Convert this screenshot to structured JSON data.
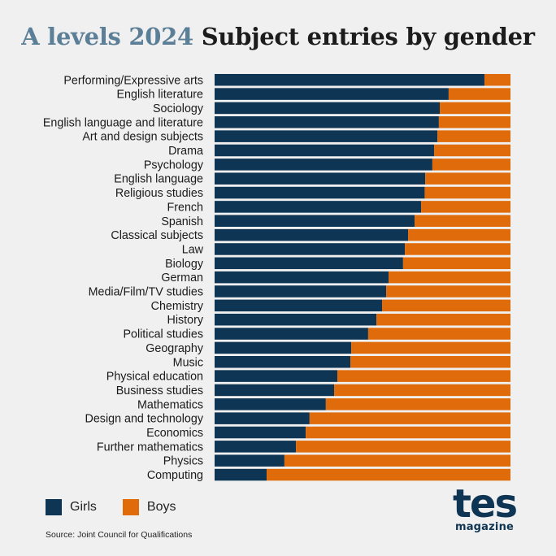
{
  "header": {
    "title_part1": "A levels 2024",
    "title_part2": "Subject entries by gender"
  },
  "colors": {
    "girls": "#0f3554",
    "boys": "#e06b0b"
  },
  "legend": {
    "girls": "Girls",
    "boys": "Boys"
  },
  "footer": {
    "source": "Source: Joint Council for Qualifications",
    "logo_main": "tes",
    "logo_sub": "magazine"
  },
  "chart_data": {
    "type": "bar",
    "orientation": "horizontal",
    "stacked": true,
    "normalized_100_percent": true,
    "title": "A levels 2024 Subject entries by gender",
    "categories": [
      "Performing/Expressive arts",
      "English literature",
      "Sociology",
      "English language and literature",
      "Art and design subjects",
      "Drama",
      "Psychology",
      "English language",
      "Religious studies",
      "French",
      "Spanish",
      "Classical subjects",
      "Law",
      "Biology",
      "German",
      "Media/Film/TV studies",
      "Chemistry",
      "History",
      "Political studies",
      "Geography",
      "Music",
      "Physical education",
      "Business studies",
      "Mathematics",
      "Design and technology",
      "Economics",
      "Further mathematics",
      "Physics",
      "Computing"
    ],
    "series": [
      {
        "name": "Girls",
        "values": [
          91.2,
          79.1,
          76.1,
          75.8,
          75.3,
          74.2,
          73.6,
          71.2,
          71.0,
          69.8,
          67.6,
          65.4,
          64.3,
          63.7,
          58.8,
          58.0,
          56.6,
          54.7,
          51.9,
          46.2,
          45.9,
          41.5,
          40.4,
          37.6,
          32.1,
          30.8,
          27.5,
          23.6,
          17.6
        ]
      },
      {
        "name": "Boys",
        "values": [
          8.8,
          20.9,
          23.9,
          24.2,
          24.7,
          25.8,
          26.4,
          28.8,
          29.0,
          30.2,
          32.4,
          34.6,
          35.7,
          36.3,
          41.2,
          42.0,
          43.4,
          45.3,
          48.1,
          53.8,
          54.1,
          58.5,
          59.6,
          62.4,
          67.9,
          69.2,
          72.5,
          76.4,
          82.4
        ]
      }
    ],
    "xlim": [
      0,
      100
    ],
    "grid": false,
    "legend_position": "bottom-left"
  }
}
